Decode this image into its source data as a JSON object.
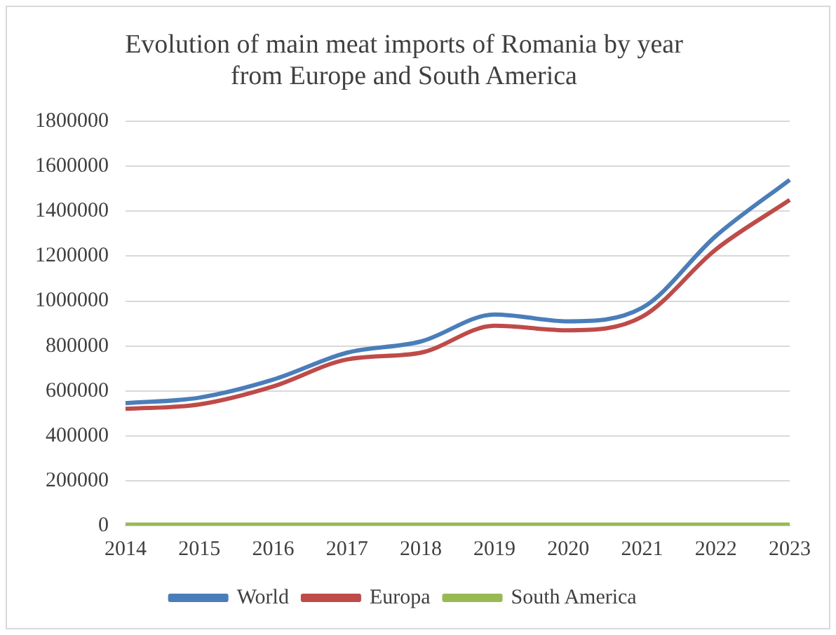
{
  "chart_data": {
    "type": "line",
    "title": "Evolution of main meat imports of Romania by year from Europe and South America",
    "categories": [
      "2014",
      "2015",
      "2016",
      "2017",
      "2018",
      "2019",
      "2020",
      "2021",
      "2022",
      "2023"
    ],
    "series": [
      {
        "name": "World",
        "color": "#4a7ebb",
        "values": [
          545000,
          570000,
          650000,
          770000,
          820000,
          940000,
          910000,
          970000,
          1290000,
          1540000
        ]
      },
      {
        "name": "Europa",
        "color": "#be4b48",
        "values": [
          520000,
          540000,
          620000,
          740000,
          770000,
          890000,
          870000,
          930000,
          1230000,
          1450000
        ]
      },
      {
        "name": "South America",
        "color": "#98b954",
        "values": [
          5000,
          5000,
          5000,
          5000,
          5000,
          5000,
          5000,
          5000,
          5000,
          5000
        ]
      }
    ],
    "ylim": [
      0,
      1800000
    ],
    "yticks": [
      0,
      200000,
      400000,
      600000,
      800000,
      1000000,
      1200000,
      1400000,
      1600000,
      1800000
    ],
    "grid": "y",
    "legend": "bottom",
    "marker": "none",
    "line_style": "solid"
  }
}
